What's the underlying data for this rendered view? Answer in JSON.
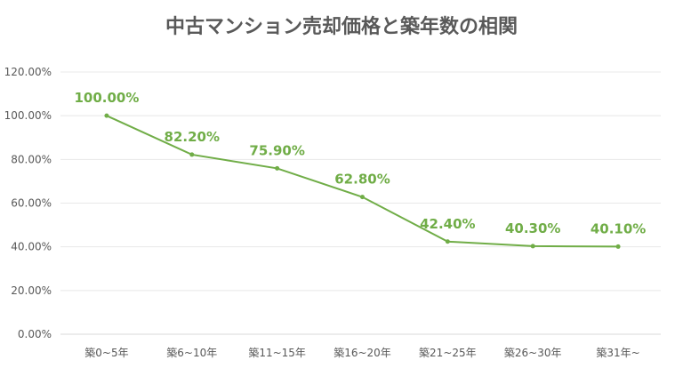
{
  "chart_data": {
    "type": "line",
    "title": "中古マンション売却価格と築年数の相関",
    "categories": [
      "築0~5年",
      "築6~10年",
      "築11~15年",
      "築16~20年",
      "築21~25年",
      "築26~30年",
      "築31年~"
    ],
    "series": [
      {
        "values": [
          100.0,
          82.2,
          75.9,
          62.8,
          42.4,
          40.3,
          40.1
        ],
        "color": "#70AD47"
      }
    ],
    "data_labels": [
      "100.00%",
      "82.20%",
      "75.90%",
      "62.80%",
      "42.40%",
      "40.30%",
      "40.10%"
    ],
    "yticks": [
      "0.00%",
      "20.00%",
      "40.00%",
      "60.00%",
      "80.00%",
      "100.00%",
      "120.00%"
    ],
    "ylim": [
      0,
      120
    ],
    "grid": true,
    "xlabel": "",
    "ylabel": ""
  }
}
